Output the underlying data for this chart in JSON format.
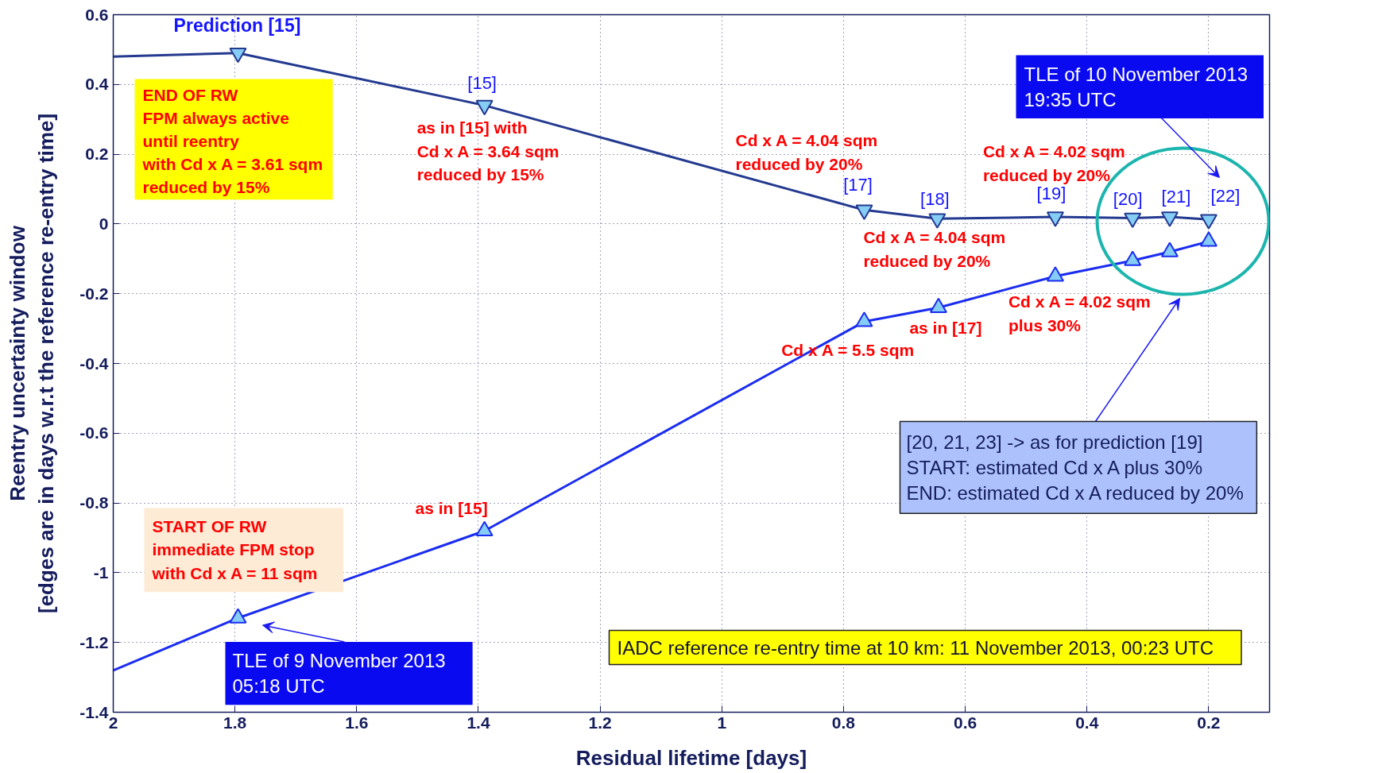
{
  "chart_data": {
    "type": "line",
    "xlabel": "Residual lifetime [days]",
    "ylabel": "Reentry uncertainty window\n[edges are in days w.r.t the reference re-entry time]",
    "xlim": [
      2,
      0.1
    ],
    "xticks": [
      2,
      1.8,
      1.6,
      1.4,
      1.2,
      1,
      0.8,
      0.6,
      0.4,
      0.2
    ],
    "ylim": [
      -1.4,
      0.6
    ],
    "yticks": [
      -1.4,
      -1.2,
      -1,
      -0.8,
      -0.6,
      -0.4,
      -0.2,
      0,
      0.2,
      0.4,
      0.6
    ],
    "grid": true,
    "line_style": "solid",
    "series": [
      {
        "color": "#243a90",
        "x": [
          2,
          1.795
        ],
        "values": [
          0.48,
          0.49
        ]
      },
      {
        "color": "#243a90",
        "x": [
          1.795,
          1.39,
          0.766,
          0.646,
          0.452,
          0.325,
          0.264,
          0.2
        ],
        "values": [
          0.49,
          0.34,
          0.04,
          0.015,
          0.02,
          0.017,
          0.02,
          0.013
        ],
        "marker": "triangle_down"
      },
      {
        "color": "#1a2cf0",
        "x": [
          2,
          1.795
        ],
        "values": [
          -1.28,
          -1.13
        ]
      },
      {
        "color": "#1a2cf0",
        "x": [
          1.795,
          1.39,
          0.766,
          0.644,
          0.452,
          0.325,
          0.264,
          0.2
        ],
        "values": [
          -1.13,
          -0.88,
          -0.28,
          -0.24,
          -0.15,
          -0.105,
          -0.08,
          -0.05
        ],
        "marker": "triangle"
      }
    ],
    "annotations": [
      {
        "text": "Prediction [15]",
        "x": 1.795,
        "y": 0.49
      },
      {
        "text": "[15]",
        "x": 1.39,
        "y": 0.34
      },
      {
        "text": "as in [15] with\nCd x A = 3.64 sqm\nreduced by 15%",
        "x": 1.39,
        "y": 0.34
      },
      {
        "text": "[17]",
        "x": 0.766,
        "y": 0.04
      },
      {
        "text": "Cd x A = 4.04 sqm\nreduced by 20%",
        "x": 0.766,
        "y": 0.04
      },
      {
        "text": "[18]",
        "x": 0.646,
        "y": 0.015
      },
      {
        "text": "Cd x A = 4.04 sqm\nreduced by 20%",
        "x": 0.646,
        "y": 0.015
      },
      {
        "text": "[19]",
        "x": 0.452,
        "y": 0.02
      },
      {
        "text": "Cd x A = 4.02 sqm\nreduced by 20%",
        "x": 0.452,
        "y": 0.02
      },
      {
        "text": "[20]",
        "x": 0.325,
        "y": 0.017
      },
      {
        "text": "[21]",
        "x": 0.264,
        "y": 0.02
      },
      {
        "text": "[22]",
        "x": 0.2,
        "y": 0.013
      },
      "END OF RW\nFPM always active\nuntil reentry\nwith Cd x A = 3.61 sqm\nreduced by 15%",
      "START OF RW\nimmediate FPM stop\nwith Cd x A = 11 sqm",
      {
        "text": "as in [15]",
        "x": 1.39,
        "y": -0.88
      },
      {
        "text": "Cd x A = 5.5 sqm",
        "x": 0.766,
        "y": -0.28
      },
      {
        "text": "as in [17]",
        "x": 0.644,
        "y": -0.24
      },
      {
        "text": "Cd x A = 4.02 sqm\nplus 30%",
        "x": 0.452,
        "y": -0.15
      },
      {
        "text": "TLE of 9 November 2013\n05:18 UTC",
        "x": 1.795,
        "y": -1.13
      },
      "TLE of 10 November 2013\n19:35 UTC",
      "[20, 21, 23] -> as for prediction [19]\nSTART: estimated Cd x A plus 30%\nEND: estimated Cd x A reduced by 20%",
      "IADC reference re-entry time at 10 km: 11 November 2013, 00:23 UTC"
    ]
  }
}
